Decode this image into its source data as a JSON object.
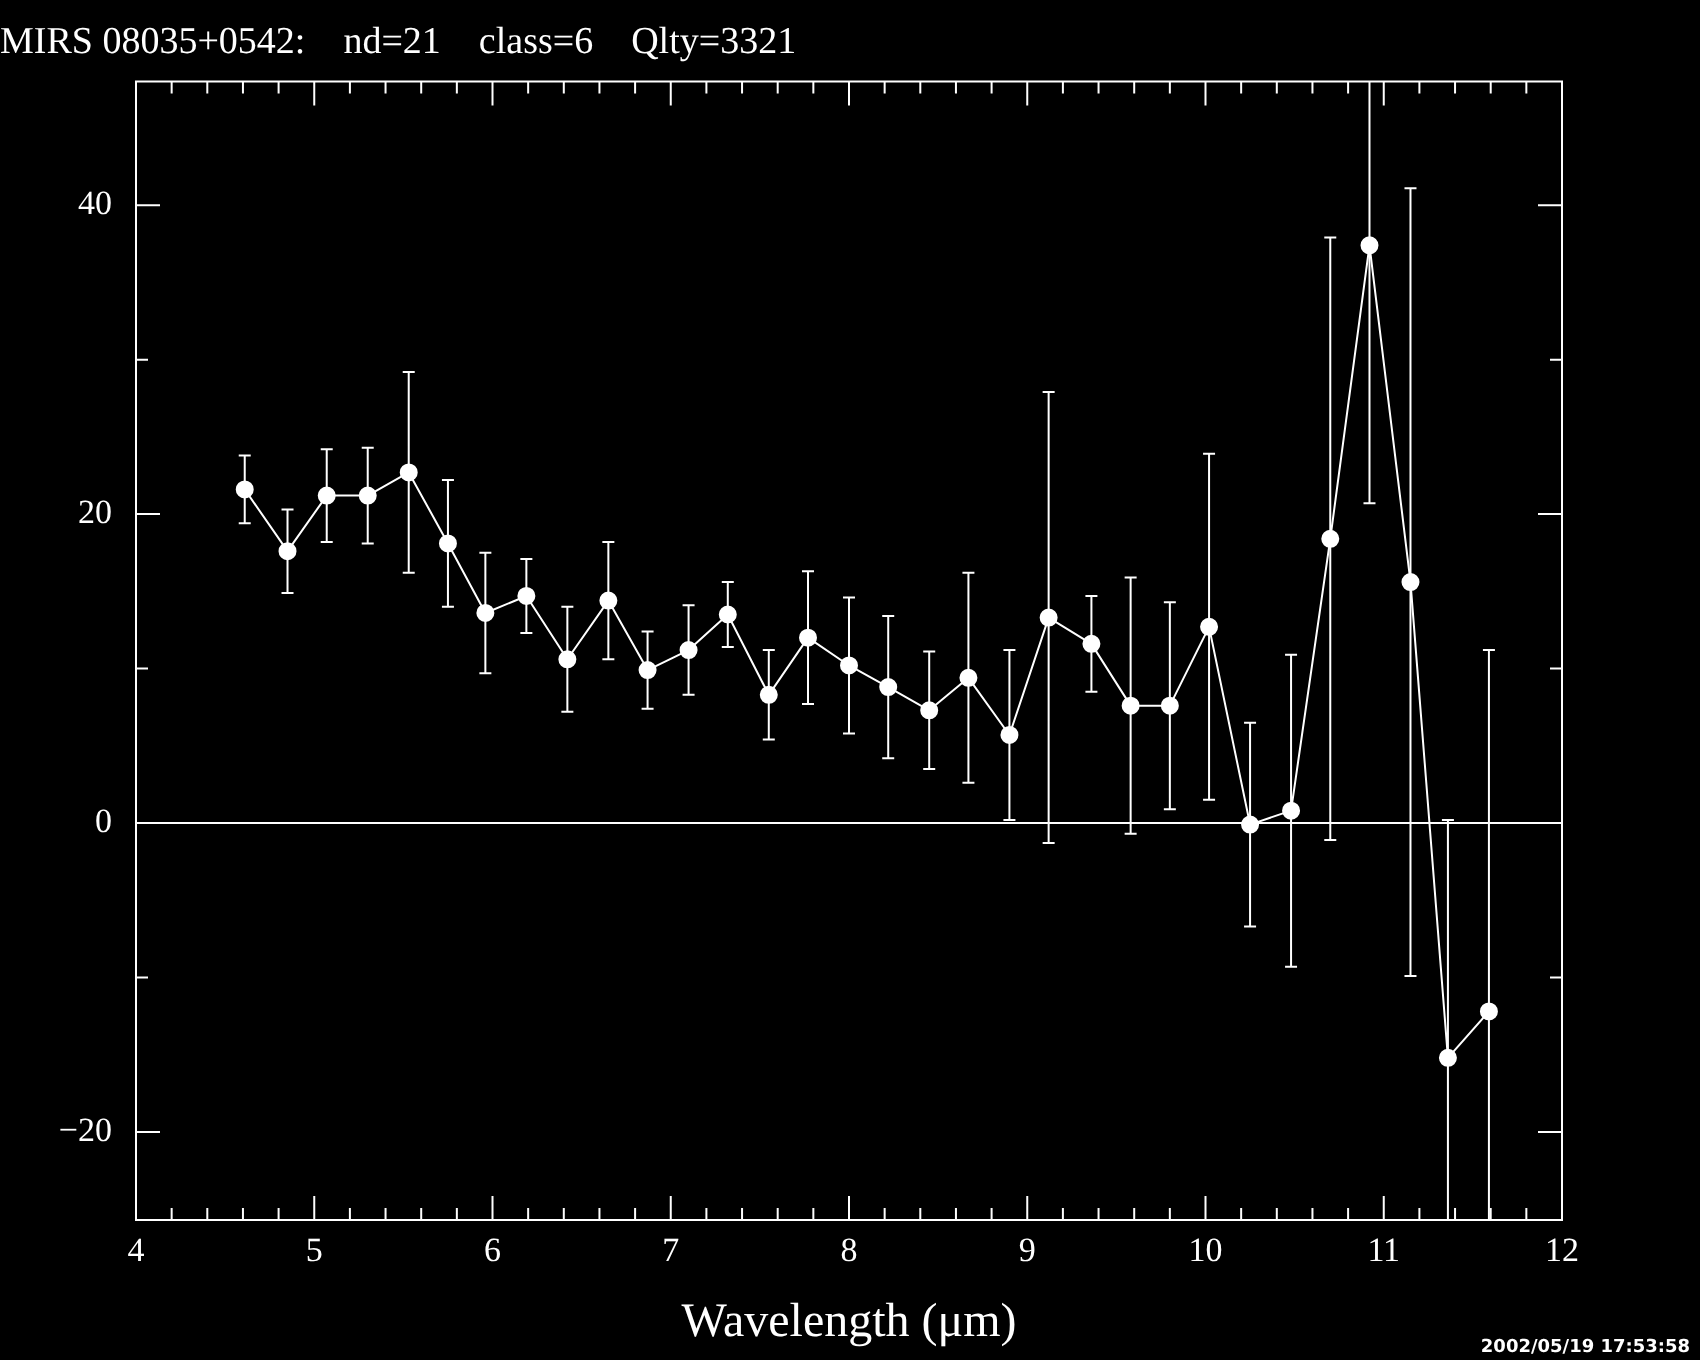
{
  "chart_data": {
    "type": "line",
    "title": "MIRS 08035+0542:    nd=21    class=6    Qlty=3321",
    "xlabel": "Wavelength (μm)",
    "color": "#ffffff",
    "marker": "circle",
    "line_style": "solid",
    "grid": false,
    "legend": false,
    "x": [
      4.61,
      4.85,
      5.07,
      5.3,
      5.53,
      5.75,
      5.96,
      6.19,
      6.42,
      6.65,
      6.87,
      7.1,
      7.32,
      7.55,
      7.77,
      8.0,
      8.22,
      8.45,
      8.67,
      8.9,
      9.12,
      9.36,
      9.58,
      9.8,
      10.02,
      10.25,
      10.48,
      10.7,
      10.92,
      11.15,
      11.36,
      11.59
    ],
    "values": [
      21.6,
      17.6,
      21.2,
      21.2,
      22.7,
      18.1,
      13.6,
      14.7,
      10.6,
      14.4,
      9.9,
      11.2,
      13.5,
      8.3,
      12.0,
      10.2,
      8.8,
      7.3,
      9.4,
      5.7,
      13.3,
      11.6,
      7.6,
      7.6,
      12.7,
      -0.1,
      0.8,
      18.4,
      37.4,
      15.6,
      -15.2,
      -12.2
    ],
    "errors": [
      2.2,
      2.7,
      3,
      3.1,
      6.5,
      4.1,
      3.9,
      2.4,
      3.4,
      3.8,
      2.5,
      2.9,
      2.1,
      2.9,
      4.3,
      4.4,
      4.6,
      3.8,
      6.8,
      5.5,
      14.6,
      3.1,
      8.3,
      6.7,
      11.2,
      6.6,
      10.1,
      19.5,
      [
        20.7,
        48
      ],
      25.5,
      [
        -25.7,
        0.2
      ],
      [
        -25.7,
        11.2
      ]
    ],
    "xlim": [
      4,
      12
    ],
    "ylim": [
      -25.7,
      48
    ],
    "xticks": [
      4,
      {
        "value": 4.2,
        "label": null
      },
      {
        "value": 4.4,
        "label": null
      },
      {
        "value": 4.6,
        "label": null
      },
      {
        "value": 4.8,
        "label": null
      },
      5,
      {
        "value": 5.2,
        "label": null
      },
      {
        "value": 5.4,
        "label": null
      },
      {
        "value": 5.6,
        "label": null
      },
      {
        "value": 5.8,
        "label": null
      },
      6,
      {
        "value": 6.2,
        "label": null
      },
      {
        "value": 6.4,
        "label": null
      },
      {
        "value": 6.6,
        "label": null
      },
      {
        "value": 6.8,
        "label": null
      },
      7,
      {
        "value": 7.2,
        "label": null
      },
      {
        "value": 7.4,
        "label": null
      },
      {
        "value": 7.6,
        "label": null
      },
      {
        "value": 7.8,
        "label": null
      },
      8,
      {
        "value": 8.2,
        "label": null
      },
      {
        "value": 8.4,
        "label": null
      },
      {
        "value": 8.6,
        "label": null
      },
      {
        "value": 8.8,
        "label": null
      },
      9,
      {
        "value": 9.2,
        "label": null
      },
      {
        "value": 9.4,
        "label": null
      },
      {
        "value": 9.6,
        "label": null
      },
      {
        "value": 9.8,
        "label": null
      },
      10,
      {
        "value": 10.2,
        "label": null
      },
      {
        "value": 10.4,
        "label": null
      },
      {
        "value": 10.6,
        "label": null
      },
      {
        "value": 10.8,
        "label": null
      },
      11,
      {
        "value": 11.2,
        "label": null
      },
      {
        "value": 11.4,
        "label": null
      },
      {
        "value": 11.6,
        "label": null
      },
      {
        "value": 11.8,
        "label": null
      },
      12
    ],
    "yticks": [
      -20,
      {
        "value": -10,
        "label": null
      },
      0,
      {
        "value": 10,
        "label": null
      },
      20,
      {
        "value": 30,
        "label": null
      },
      40
    ],
    "ref_lines": [
      {
        "axis": "y",
        "value": 0,
        "color": "#ffffff"
      }
    ],
    "annotations": [
      "2002/05/19 17:53:58"
    ]
  }
}
